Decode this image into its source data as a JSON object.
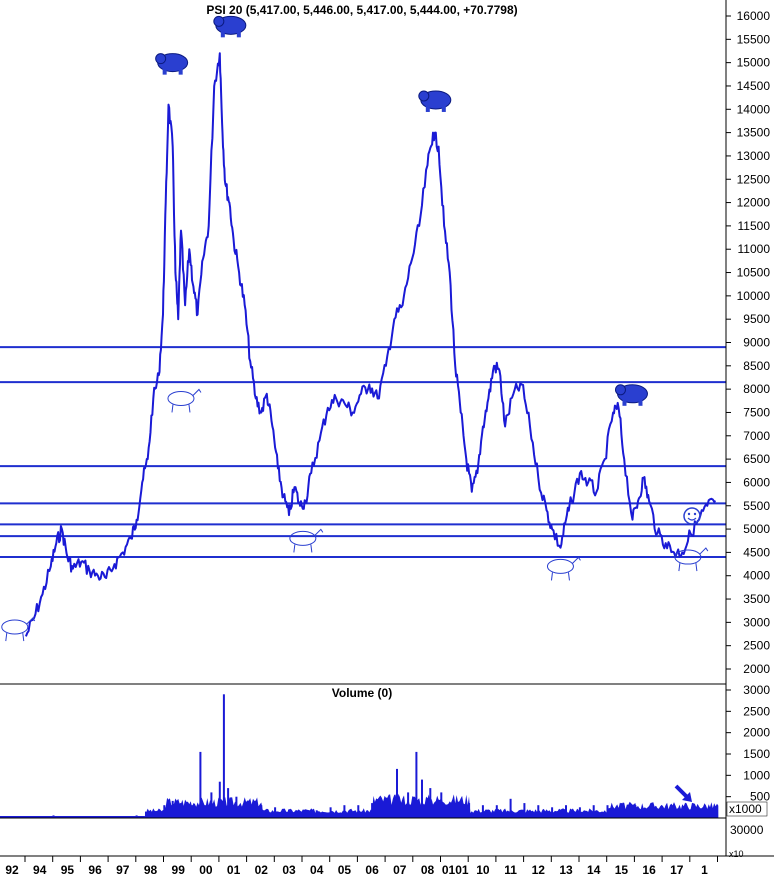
{
  "colors": {
    "price_line": "#1a1ad6",
    "hline": "#1f2fcf",
    "volume": "#1a1ad6",
    "grid": "#000000",
    "icon": "#2a3fd0"
  },
  "chart_data": [
    {
      "type": "line",
      "title": "PSI 20 (5,417.00, 5,446.00, 5,417.00, 5,444.00, +70.7798)",
      "ylim": [
        1700,
        16300
      ],
      "y_ticks": [
        "16000",
        "15500",
        "15000",
        "14500",
        "14000",
        "13500",
        "13000",
        "12500",
        "12000",
        "11500",
        "11000",
        "10500",
        "10000",
        "9500",
        "9000",
        "8500",
        "8000",
        "7500",
        "7000",
        "6500",
        "6000",
        "5500",
        "5000",
        "4500",
        "4000",
        "3500",
        "3000",
        "2500",
        "2000"
      ],
      "x_tick_labels": [
        "92",
        "94",
        "95",
        "96",
        "97",
        "98",
        "99",
        "00",
        "01",
        "02",
        "03",
        "04",
        "05",
        "06",
        "07",
        "08",
        "0101",
        "10",
        "11",
        "12",
        "13",
        "14",
        "15",
        "16",
        "17",
        "1"
      ],
      "series": [
        {
          "x": [
            1993.0,
            1993.3,
            1993.6,
            1993.9,
            1994.1,
            1994.3,
            1994.5,
            1994.7,
            1995.0,
            1995.3,
            1995.6,
            1995.9,
            1996.2,
            1996.5,
            1996.8,
            1997.0,
            1997.2,
            1997.4,
            1997.6,
            1997.8,
            1997.95,
            1998.05,
            1998.15,
            1998.3,
            1998.4,
            1998.5,
            1998.6,
            1998.75,
            1998.9,
            1999.05,
            1999.2,
            1999.4,
            1999.6,
            1999.8,
            2000.0,
            2000.1,
            2000.2,
            2000.35,
            2000.5,
            2000.7,
            2000.9,
            2001.1,
            2001.3,
            2001.5,
            2001.7,
            2001.9,
            2002.1,
            2002.3,
            2002.5,
            2002.7,
            2002.9,
            2003.1,
            2003.3,
            2003.6,
            2003.9,
            2004.2,
            2004.5,
            2004.8,
            2005.1,
            2005.4,
            2005.7,
            2006.0,
            2006.3,
            2006.6,
            2006.9,
            2007.2,
            2007.5,
            2007.7,
            2007.9,
            2008.1,
            2008.3,
            2008.5,
            2008.7,
            2008.9,
            2009.1,
            2009.3,
            2009.5,
            2009.7,
            2009.9,
            2010.1,
            2010.3,
            2010.6,
            2010.9,
            2011.2,
            2011.5,
            2011.8,
            2012.0,
            2012.3,
            2012.5,
            2012.7,
            2013.0,
            2013.3,
            2013.6,
            2013.9,
            2014.2,
            2014.4,
            2014.6,
            2014.9,
            2015.1,
            2015.3,
            2015.5,
            2015.8,
            2016.1,
            2016.4,
            2016.7,
            2017.0,
            2017.3,
            2017.6,
            2017.9
          ],
          "values": [
            2700,
            3100,
            3600,
            4200,
            4700,
            5000,
            4400,
            4150,
            4300,
            4100,
            4000,
            3950,
            4250,
            4500,
            4800,
            5200,
            6000,
            6500,
            7800,
            8300,
            9600,
            12000,
            14100,
            13200,
            10500,
            9500,
            11400,
            9800,
            11000,
            10200,
            9600,
            10800,
            11500,
            14500,
            15200,
            13500,
            12400,
            12000,
            11200,
            10500,
            9800,
            8600,
            7800,
            7500,
            7900,
            7200,
            6300,
            5700,
            5300,
            5900,
            5500,
            5600,
            6200,
            6900,
            7600,
            7800,
            7700,
            7500,
            7900,
            8100,
            7800,
            8500,
            9500,
            9800,
            10700,
            11500,
            12800,
            13500,
            13200,
            11500,
            10500,
            8500,
            7500,
            6500,
            5800,
            6200,
            7200,
            7800,
            8500,
            8400,
            7200,
            7900,
            8100,
            7200,
            6100,
            5400,
            5000,
            4600,
            5200,
            5600,
            6200,
            6000,
            5800,
            6500,
            7500,
            7600,
            6500,
            5200,
            5600,
            6100,
            5600,
            4900,
            4700,
            4500,
            4500,
            4900,
            5200,
            5500,
            5600
          ]
        }
      ],
      "horizontal_lines": [
        8900,
        8150,
        6350,
        5550,
        5100,
        4850,
        4400
      ]
    },
    {
      "type": "bar",
      "title": "Volume (0)",
      "ylim": [
        0,
        3000
      ],
      "y_ticks": [
        "3000",
        "2500",
        "2000",
        "1500",
        "1000",
        "500"
      ],
      "multiplier_label": "x1000",
      "lower_tick": "30000",
      "lower_multiplier": "x10",
      "series": [
        {
          "x": [
            1993,
            1994,
            1995,
            1996,
            1997,
            1997.5,
            1998,
            1998.3,
            1998.6,
            1999,
            1999.3,
            1999.7,
            2000,
            2000.15,
            2000.3,
            2000.6,
            2001,
            2001.5,
            2002,
            2002.5,
            2003,
            2003.5,
            2004,
            2004.5,
            2005,
            2005.5,
            2006,
            2006.4,
            2006.8,
            2007.1,
            2007.3,
            2007.6,
            2008,
            2008.5,
            2009,
            2009.5,
            2010,
            2010.5,
            2011,
            2011.5,
            2012,
            2012.5,
            2013,
            2013.5,
            2014,
            2014.5,
            2015,
            2015.5,
            2016,
            2016.5,
            2017,
            2017.5,
            2017.9
          ],
          "values": [
            20,
            60,
            25,
            30,
            60,
            150,
            300,
            400,
            350,
            300,
            1550,
            600,
            850,
            2900,
            700,
            500,
            350,
            300,
            250,
            200,
            150,
            180,
            250,
            300,
            300,
            350,
            450,
            1150,
            600,
            1550,
            900,
            700,
            600,
            350,
            350,
            300,
            300,
            450,
            350,
            300,
            250,
            300,
            250,
            300,
            300,
            350,
            300,
            250,
            200,
            200,
            150,
            200,
            180
          ]
        }
      ]
    }
  ]
}
